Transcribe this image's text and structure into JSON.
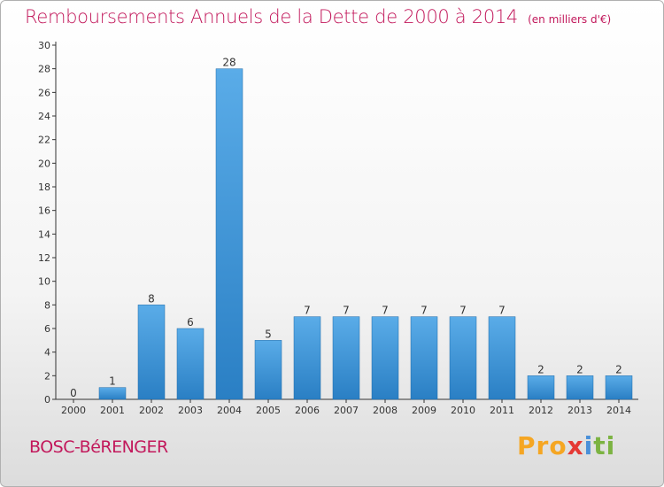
{
  "title": "Remboursements Annuels de la Dette de 2000 à 2014",
  "unit_note": "(en milliers d'€)",
  "commune": "BOSC-BéRENGER",
  "brand": {
    "p1": "Pro",
    "p2": "x",
    "p3": "i",
    "p4": "ti"
  },
  "colors": {
    "title": "#c2185b",
    "bar_light": "#5aace8",
    "bar_dark": "#2a7fc4"
  },
  "chart_data": {
    "type": "bar",
    "categories": [
      "2000",
      "2001",
      "2002",
      "2003",
      "2004",
      "2005",
      "2006",
      "2007",
      "2008",
      "2009",
      "2010",
      "2011",
      "2012",
      "2013",
      "2014"
    ],
    "values": [
      0,
      1,
      8,
      6,
      28,
      5,
      7,
      7,
      7,
      7,
      7,
      7,
      2,
      2,
      2
    ],
    "ylim": [
      0,
      30
    ],
    "yticks": [
      0,
      2,
      4,
      6,
      8,
      10,
      12,
      14,
      16,
      18,
      20,
      22,
      24,
      26,
      28,
      30
    ],
    "grid": false
  }
}
